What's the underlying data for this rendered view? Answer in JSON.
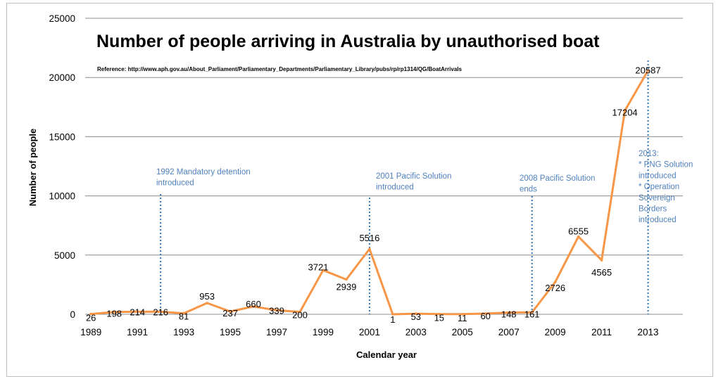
{
  "chart_data": {
    "type": "line",
    "title": "Number of people arriving in Australia by unauthorised boat",
    "subtitle": "Reference: http://www.aph.gov.au/About_Parliament/Parliamentary_Departments/Parliamentary_Library/pubs/rp/rp1314/QG/BoatArrivals",
    "xlabel": "Calendar year",
    "ylabel": "Number of people",
    "ylim": [
      0,
      25000
    ],
    "yticks": [
      "0",
      "5000",
      "10000",
      "15000",
      "20000",
      "25000"
    ],
    "xticks": [
      "1989",
      "1991",
      "1993",
      "1995",
      "1997",
      "1999",
      "2001",
      "2003",
      "2005",
      "2007",
      "2009",
      "2011",
      "2013"
    ],
    "grid": "horizontal",
    "line_color": "#f79646",
    "series": [
      {
        "x": [
          1989,
          1990,
          1991,
          1992,
          1993,
          1994,
          1995,
          1996,
          1997,
          1998,
          1999,
          2000,
          2001,
          2002,
          2003,
          2004,
          2005,
          2006,
          2007,
          2008,
          2009,
          2010,
          2011,
          2012,
          2013
        ],
        "values": [
          26,
          198,
          214,
          216,
          81,
          953,
          237,
          660,
          339,
          200,
          3721,
          2939,
          5516,
          1,
          53,
          15,
          11,
          60,
          148,
          161,
          2726,
          6555,
          4565,
          17204,
          20587
        ],
        "labels": [
          "26",
          "198",
          "214",
          "216",
          "81",
          "953",
          "237",
          "660",
          "339",
          "200",
          "3721",
          "2939",
          "5516",
          "1",
          "53",
          "15",
          "11",
          "60",
          "148",
          "161",
          "2726",
          "6555",
          "4565",
          "17204",
          "20587"
        ]
      }
    ],
    "annotations": [
      {
        "x": 1992,
        "lines": [
          "1992 Mandatory detention",
          "introduced"
        ]
      },
      {
        "x": 2001,
        "lines": [
          "2001 Pacific Solution",
          "introduced"
        ]
      },
      {
        "x": 2008,
        "lines": [
          "2008 Pacific Solution",
          "ends"
        ]
      },
      {
        "x": 2013,
        "lines": [
          "2013:",
          "* PNG Solution",
          "introduced",
          "* Operation",
          "Sovereign",
          "Borders",
          "introduced"
        ]
      }
    ]
  }
}
